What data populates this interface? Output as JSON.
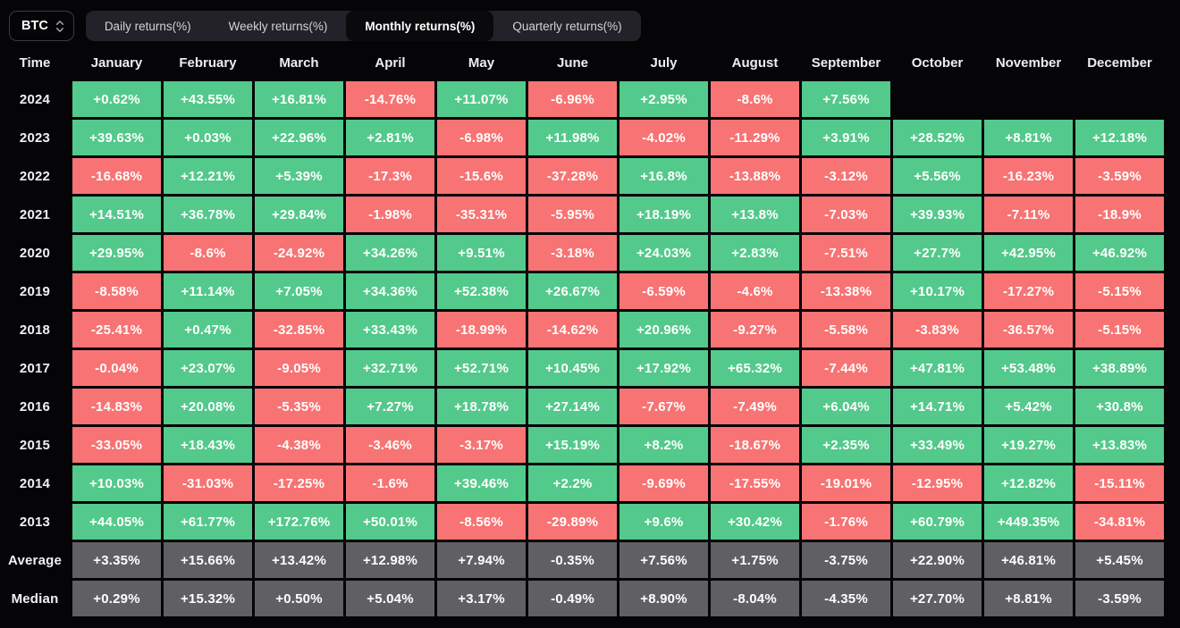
{
  "colors": {
    "positive": "#53c98b",
    "negative": "#f87373",
    "neutral": "#606064",
    "background": "#050508"
  },
  "controls": {
    "asset_selector": {
      "value": "BTC"
    },
    "tabs": [
      {
        "label": "Daily returns(%)",
        "active": false
      },
      {
        "label": "Weekly returns(%)",
        "active": false
      },
      {
        "label": "Monthly returns(%)",
        "active": true
      },
      {
        "label": "Quarterly returns(%)",
        "active": false
      }
    ]
  },
  "table": {
    "columns": [
      "Time",
      "January",
      "February",
      "March",
      "April",
      "May",
      "June",
      "July",
      "August",
      "September",
      "October",
      "November",
      "December"
    ],
    "year_rows": [
      {
        "label": "2024",
        "values": [
          "+0.62%",
          "+43.55%",
          "+16.81%",
          "-14.76%",
          "+11.07%",
          "-6.96%",
          "+2.95%",
          "-8.6%",
          "+7.56%",
          null,
          null,
          null
        ]
      },
      {
        "label": "2023",
        "values": [
          "+39.63%",
          "+0.03%",
          "+22.96%",
          "+2.81%",
          "-6.98%",
          "+11.98%",
          "-4.02%",
          "-11.29%",
          "+3.91%",
          "+28.52%",
          "+8.81%",
          "+12.18%"
        ]
      },
      {
        "label": "2022",
        "values": [
          "-16.68%",
          "+12.21%",
          "+5.39%",
          "-17.3%",
          "-15.6%",
          "-37.28%",
          "+16.8%",
          "-13.88%",
          "-3.12%",
          "+5.56%",
          "-16.23%",
          "-3.59%"
        ]
      },
      {
        "label": "2021",
        "values": [
          "+14.51%",
          "+36.78%",
          "+29.84%",
          "-1.98%",
          "-35.31%",
          "-5.95%",
          "+18.19%",
          "+13.8%",
          "-7.03%",
          "+39.93%",
          "-7.11%",
          "-18.9%"
        ]
      },
      {
        "label": "2020",
        "values": [
          "+29.95%",
          "-8.6%",
          "-24.92%",
          "+34.26%",
          "+9.51%",
          "-3.18%",
          "+24.03%",
          "+2.83%",
          "-7.51%",
          "+27.7%",
          "+42.95%",
          "+46.92%"
        ]
      },
      {
        "label": "2019",
        "values": [
          "-8.58%",
          "+11.14%",
          "+7.05%",
          "+34.36%",
          "+52.38%",
          "+26.67%",
          "-6.59%",
          "-4.6%",
          "-13.38%",
          "+10.17%",
          "-17.27%",
          "-5.15%"
        ]
      },
      {
        "label": "2018",
        "values": [
          "-25.41%",
          "+0.47%",
          "-32.85%",
          "+33.43%",
          "-18.99%",
          "-14.62%",
          "+20.96%",
          "-9.27%",
          "-5.58%",
          "-3.83%",
          "-36.57%",
          "-5.15%"
        ]
      },
      {
        "label": "2017",
        "values": [
          "-0.04%",
          "+23.07%",
          "-9.05%",
          "+32.71%",
          "+52.71%",
          "+10.45%",
          "+17.92%",
          "+65.32%",
          "-7.44%",
          "+47.81%",
          "+53.48%",
          "+38.89%"
        ]
      },
      {
        "label": "2016",
        "values": [
          "-14.83%",
          "+20.08%",
          "-5.35%",
          "+7.27%",
          "+18.78%",
          "+27.14%",
          "-7.67%",
          "-7.49%",
          "+6.04%",
          "+14.71%",
          "+5.42%",
          "+30.8%"
        ]
      },
      {
        "label": "2015",
        "values": [
          "-33.05%",
          "+18.43%",
          "-4.38%",
          "-3.46%",
          "-3.17%",
          "+15.19%",
          "+8.2%",
          "-18.67%",
          "+2.35%",
          "+33.49%",
          "+19.27%",
          "+13.83%"
        ]
      },
      {
        "label": "2014",
        "values": [
          "+10.03%",
          "-31.03%",
          "-17.25%",
          "-1.6%",
          "+39.46%",
          "+2.2%",
          "-9.69%",
          "-17.55%",
          "-19.01%",
          "-12.95%",
          "+12.82%",
          "-15.11%"
        ]
      },
      {
        "label": "2013",
        "values": [
          "+44.05%",
          "+61.77%",
          "+172.76%",
          "+50.01%",
          "-8.56%",
          "-29.89%",
          "+9.6%",
          "+30.42%",
          "-1.76%",
          "+60.79%",
          "+449.35%",
          "-34.81%"
        ]
      }
    ],
    "stat_rows": [
      {
        "label": "Average",
        "values": [
          "+3.35%",
          "+15.66%",
          "+13.42%",
          "+12.98%",
          "+7.94%",
          "-0.35%",
          "+7.56%",
          "+1.75%",
          "-3.75%",
          "+22.90%",
          "+46.81%",
          "+5.45%"
        ]
      },
      {
        "label": "Median",
        "values": [
          "+0.29%",
          "+15.32%",
          "+0.50%",
          "+5.04%",
          "+3.17%",
          "-0.49%",
          "+8.90%",
          "-8.04%",
          "-4.35%",
          "+27.70%",
          "+8.81%",
          "-3.59%"
        ]
      }
    ]
  }
}
